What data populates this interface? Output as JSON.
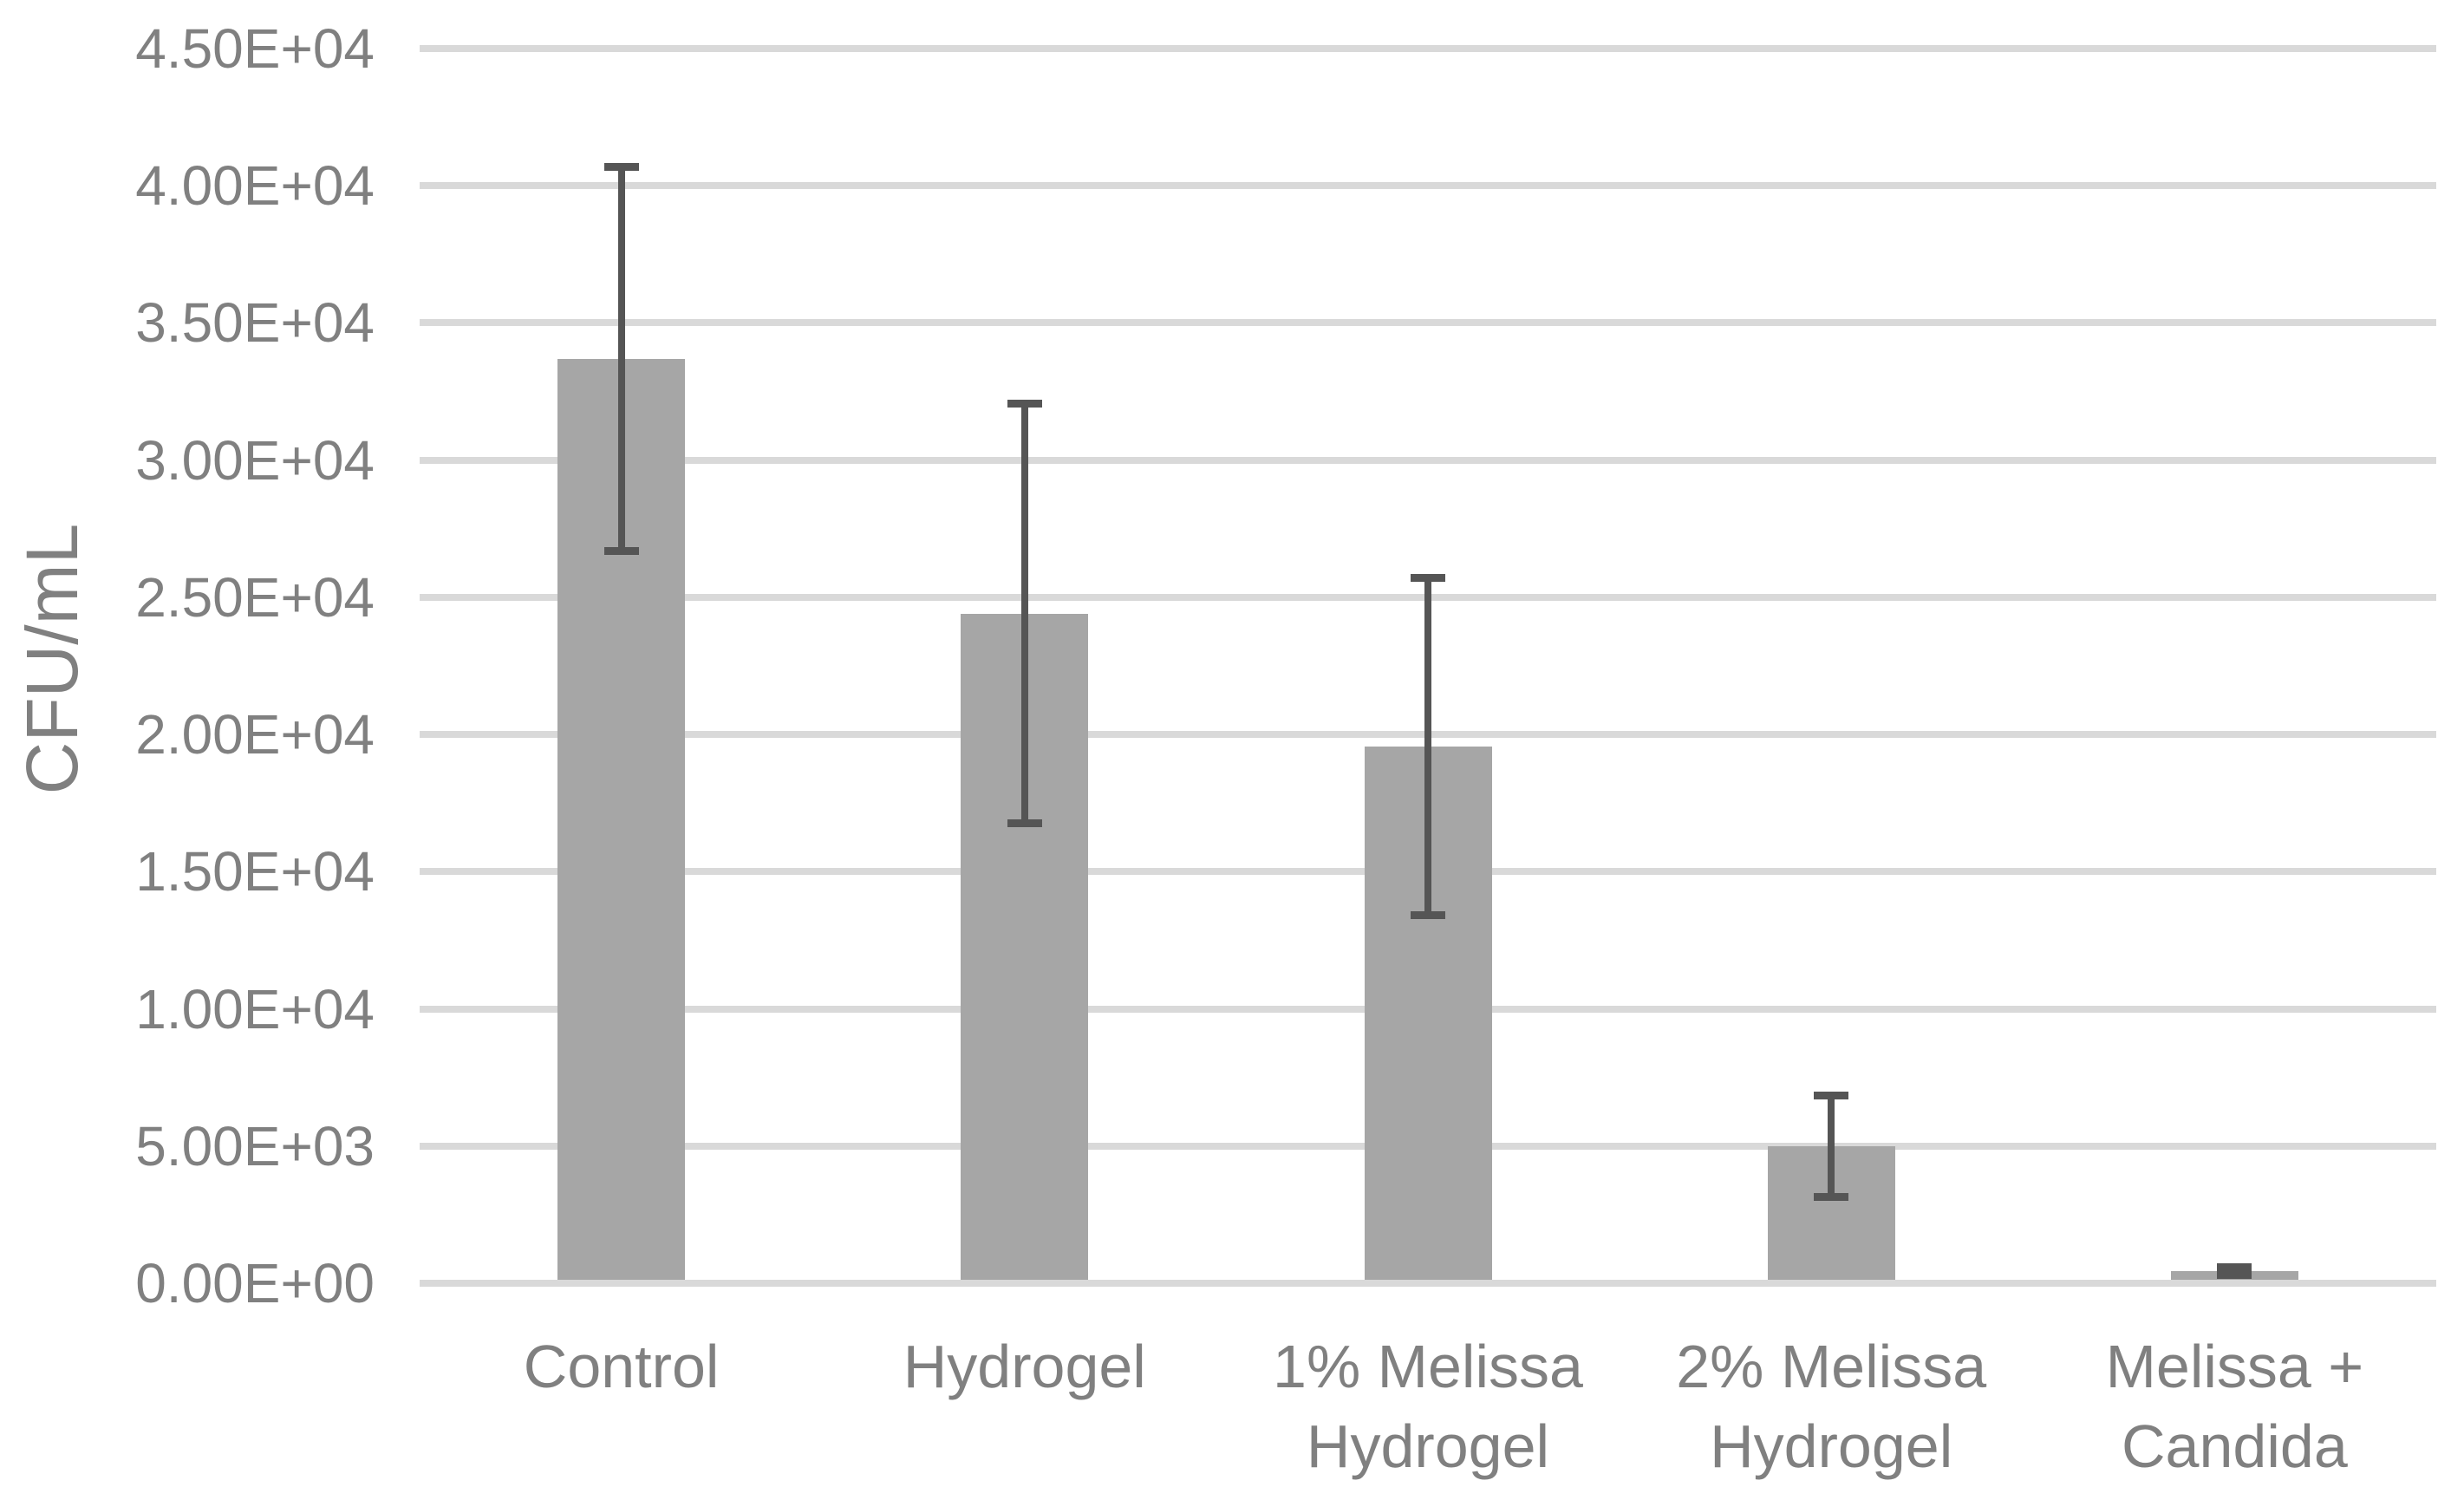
{
  "chart_data": {
    "type": "bar",
    "title": "",
    "xlabel": "",
    "ylabel": "CFU/mL",
    "categories": [
      "Control",
      "Hydrogel",
      "1% Melissa Hydrogel",
      "2% Melissa Hydrogel",
      "Melissa + Candida"
    ],
    "series": [
      {
        "name": "CFU/mL",
        "values": [
          33700,
          24400,
          19550,
          5000,
          440
        ],
        "error_bars": [
          7000,
          7650,
          6150,
          1850,
          150
        ]
      }
    ],
    "y_ticks": [
      {
        "value": 0,
        "label": "0.00E+00"
      },
      {
        "value": 5000,
        "label": "5.00E+03"
      },
      {
        "value": 10000,
        "label": "1.00E+04"
      },
      {
        "value": 15000,
        "label": "1.50E+04"
      },
      {
        "value": 20000,
        "label": "2.00E+04"
      },
      {
        "value": 25000,
        "label": "2.50E+04"
      },
      {
        "value": 30000,
        "label": "3.00E+04"
      },
      {
        "value": 35000,
        "label": "3.50E+04"
      },
      {
        "value": 40000,
        "label": "4.00E+04"
      },
      {
        "value": 45000,
        "label": "4.50E+04"
      }
    ],
    "ylim": [
      0,
      45000
    ],
    "grid": true,
    "legend": false,
    "colors": {
      "bar_fill": "#a6a6a6",
      "error_bar": "#555555",
      "gridline": "#d9d9d9",
      "text": "#808080",
      "background": "#ffffff"
    }
  }
}
